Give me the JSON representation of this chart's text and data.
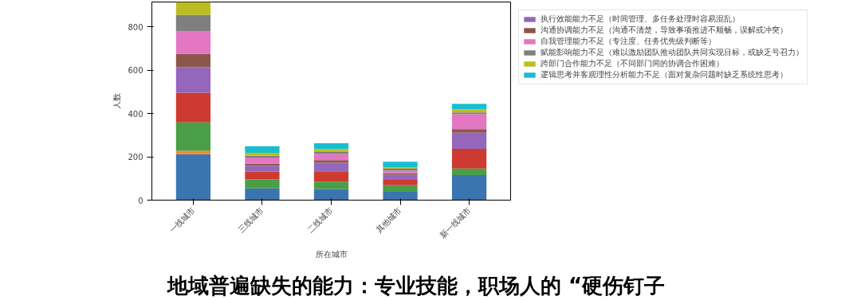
{
  "chart_data": {
    "type": "bar",
    "stacked": true,
    "xlabel": "所在城市",
    "ylabel": "人数",
    "categories": [
      "一线城市",
      "三线城市",
      "二线城市",
      "其他城市",
      "新一线城市"
    ],
    "series": [
      {
        "color": "#3a75b0",
        "values": [
          212,
          54,
          51,
          39,
          116
        ]
      },
      {
        "color": "#f08a2c",
        "values": [
          16,
          null,
          null,
          null,
          null
        ]
      },
      {
        "color": "#4a9e45",
        "values": [
          131,
          42,
          34,
          30,
          30
        ]
      },
      {
        "color": "#cc3a30",
        "values": [
          137,
          35,
          48,
          25,
          91
        ]
      },
      {
        "name": "执行效能能力不足（时间管理、多任务处理时容易混乱）",
        "color": "#9467bd",
        "values": [
          119,
          27,
          40,
          24,
          74
        ]
      },
      {
        "name": "沟通协调能力不足（沟通不清楚，导致事项推进不顺畅，误解或冲突）",
        "color": "#8c564b",
        "values": [
          61,
          10,
          12,
          6,
          17
        ]
      },
      {
        "name": "自我管理能力不足（专注度、任务优先级判断等）",
        "color": "#e377c2",
        "values": [
          103,
          29,
          28,
          12,
          70
        ]
      },
      {
        "name": "赋能影响能力不足（难以激励团队推动团队共同实现目标，或缺乏号召力）",
        "color": "#7f7f7f",
        "values": [
          76,
          8,
          9,
          9,
          7
        ]
      },
      {
        "name": "跨部门合作能力不足（不同部门间的协调合作困难）",
        "color": "#bcbd22",
        "values": [
          60,
          14,
          14,
          6,
          15
        ]
      },
      {
        "name": "逻辑思考并客观理性分析能力不足（面对复杂问题时缺乏系统性思考）",
        "color": "#17becf",
        "values": [
          null,
          30,
          27,
          26,
          25
        ]
      }
    ],
    "ylim": [
      0,
      915
    ],
    "yticks": [
      0,
      200,
      400,
      600,
      800
    ],
    "grid": false,
    "legend": "top right",
    "annotations": [
      "地域普遍缺失的能力：专业技能，职场人的 “硬伤钉子"
    ]
  }
}
